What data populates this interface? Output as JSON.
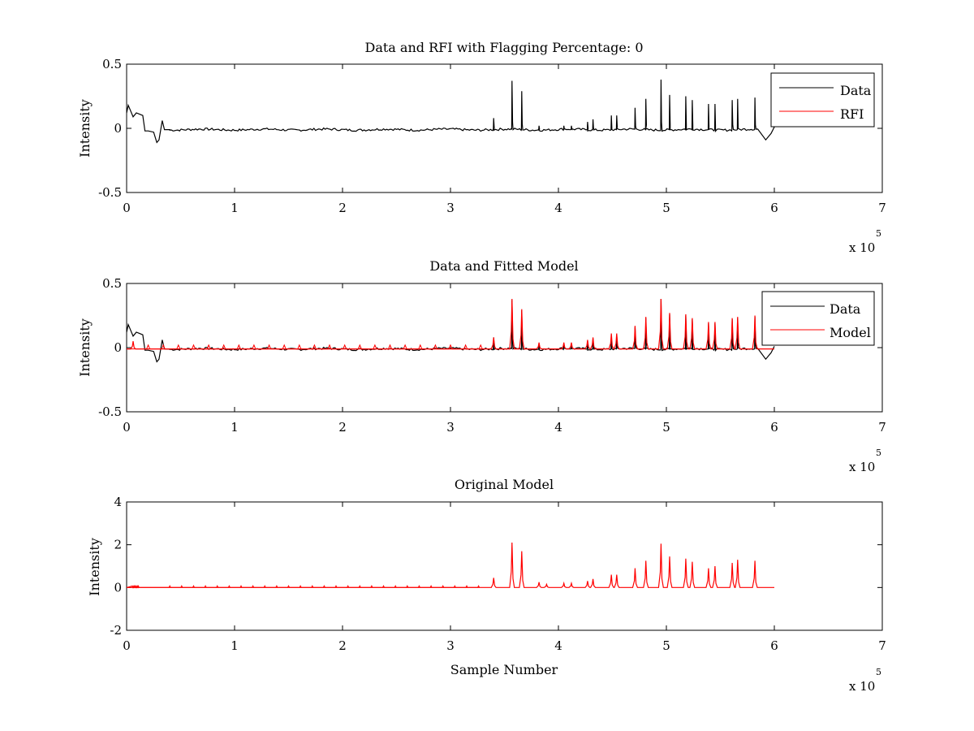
{
  "chart_data": [
    {
      "type": "line",
      "title": "Data and RFI with Flagging Percentage: 0",
      "ylabel": "Intensity",
      "xlabel": "",
      "xlim": [
        0,
        700000
      ],
      "ylim": [
        -0.5,
        0.5
      ],
      "xticks": [
        0,
        100000,
        200000,
        300000,
        400000,
        500000,
        600000,
        700000
      ],
      "xtick_labels": [
        "0",
        "1",
        "2",
        "3",
        "4",
        "5",
        "6",
        "7"
      ],
      "yticks": [
        -0.5,
        0,
        0.5
      ],
      "ytick_labels": [
        "-0.5",
        "0",
        "0.5"
      ],
      "x_multiplier": {
        "base": "x 10",
        "exponent": "5"
      },
      "legend_position": "top-right",
      "legend": [
        "Data",
        "RFI"
      ],
      "series": [
        {
          "name": "Data",
          "color": "#000000",
          "x": [
            0,
            1500,
            3000,
            6000,
            9000,
            12000,
            15000,
            17000,
            20000,
            25000,
            28000,
            30000,
            33000,
            35000,
            40000,
            600000
          ],
          "y": [
            0.12,
            0.18,
            0.15,
            0.09,
            0.12,
            0.11,
            0.1,
            -0.02,
            -0.02,
            -0.03,
            -0.11,
            -0.09,
            0.06,
            -0.01,
            -0.01,
            -0.01
          ],
          "peaks": [
            {
              "x": 340000,
              "y": 0.08
            },
            {
              "x": 357000,
              "y": 0.37
            },
            {
              "x": 366000,
              "y": 0.29
            },
            {
              "x": 382000,
              "y": 0.02
            },
            {
              "x": 405000,
              "y": 0.02
            },
            {
              "x": 412000,
              "y": 0.02
            },
            {
              "x": 427000,
              "y": 0.05
            },
            {
              "x": 432000,
              "y": 0.07
            },
            {
              "x": 449000,
              "y": 0.1
            },
            {
              "x": 454000,
              "y": 0.1
            },
            {
              "x": 471000,
              "y": 0.16
            },
            {
              "x": 481000,
              "y": 0.23
            },
            {
              "x": 495000,
              "y": 0.38
            },
            {
              "x": 503000,
              "y": 0.26
            },
            {
              "x": 518000,
              "y": 0.25
            },
            {
              "x": 524000,
              "y": 0.22
            },
            {
              "x": 539000,
              "y": 0.19
            },
            {
              "x": 545000,
              "y": 0.19
            },
            {
              "x": 561000,
              "y": 0.22
            },
            {
              "x": 566000,
              "y": 0.23
            },
            {
              "x": 582000,
              "y": 0.24
            }
          ],
          "end_feature": [
            {
              "x": 585000,
              "y": -0.01
            },
            {
              "x": 592000,
              "y": -0.09
            },
            {
              "x": 597000,
              "y": -0.04
            },
            {
              "x": 600000,
              "y": 0.01
            }
          ]
        },
        {
          "name": "RFI",
          "color": "#ff0000",
          "x": [],
          "y": []
        }
      ]
    },
    {
      "type": "line",
      "title": "Data and Fitted Model",
      "ylabel": "Intensity",
      "xlabel": "",
      "xlim": [
        0,
        700000
      ],
      "ylim": [
        -0.5,
        0.5
      ],
      "xticks": [
        0,
        100000,
        200000,
        300000,
        400000,
        500000,
        600000,
        700000
      ],
      "xtick_labels": [
        "0",
        "1",
        "2",
        "3",
        "4",
        "5",
        "6",
        "7"
      ],
      "yticks": [
        -0.5,
        0,
        0.5
      ],
      "ytick_labels": [
        "-0.5",
        "0",
        "0.5"
      ],
      "x_multiplier": {
        "base": "x 10",
        "exponent": "5"
      },
      "legend_position": "top-right",
      "legend": [
        "Data",
        "Model"
      ],
      "series": [
        {
          "name": "Data",
          "color": "#000000"
        },
        {
          "name": "Model",
          "color": "#ff0000",
          "peaks": [
            {
              "x": 6000,
              "y": 0.05
            },
            {
              "x": 340000,
              "y": 0.08
            },
            {
              "x": 357000,
              "y": 0.38
            },
            {
              "x": 366000,
              "y": 0.3
            },
            {
              "x": 382000,
              "y": 0.04
            },
            {
              "x": 405000,
              "y": 0.04
            },
            {
              "x": 412000,
              "y": 0.04
            },
            {
              "x": 427000,
              "y": 0.06
            },
            {
              "x": 432000,
              "y": 0.08
            },
            {
              "x": 449000,
              "y": 0.11
            },
            {
              "x": 454000,
              "y": 0.11
            },
            {
              "x": 471000,
              "y": 0.17
            },
            {
              "x": 481000,
              "y": 0.24
            },
            {
              "x": 495000,
              "y": 0.38
            },
            {
              "x": 503000,
              "y": 0.27
            },
            {
              "x": 518000,
              "y": 0.26
            },
            {
              "x": 524000,
              "y": 0.23
            },
            {
              "x": 539000,
              "y": 0.2
            },
            {
              "x": 545000,
              "y": 0.2
            },
            {
              "x": 561000,
              "y": 0.23
            },
            {
              "x": 566000,
              "y": 0.24
            },
            {
              "x": 582000,
              "y": 0.25
            }
          ]
        }
      ]
    },
    {
      "type": "line",
      "title": "Original Model",
      "ylabel": "Intensity",
      "xlabel": "Sample Number",
      "xlim": [
        0,
        700000
      ],
      "ylim": [
        -2,
        4
      ],
      "xticks": [
        0,
        100000,
        200000,
        300000,
        400000,
        500000,
        600000,
        700000
      ],
      "xtick_labels": [
        "0",
        "1",
        "2",
        "3",
        "4",
        "5",
        "6",
        "7"
      ],
      "yticks": [
        -2,
        0,
        2,
        4
      ],
      "ytick_labels": [
        "-2",
        "0",
        "2",
        "4"
      ],
      "x_multiplier": {
        "base": "x 10",
        "exponent": "5"
      },
      "series": [
        {
          "name": "Model",
          "color": "#ff0000",
          "x": [
            0,
            600000
          ],
          "y": [
            0,
            0
          ],
          "peaks": [
            {
              "x": 340000,
              "y": 0.45
            },
            {
              "x": 357000,
              "y": 2.1
            },
            {
              "x": 366000,
              "y": 1.7
            },
            {
              "x": 382000,
              "y": 0.25
            },
            {
              "x": 389000,
              "y": 0.15
            },
            {
              "x": 405000,
              "y": 0.2
            },
            {
              "x": 412000,
              "y": 0.2
            },
            {
              "x": 427000,
              "y": 0.3
            },
            {
              "x": 432000,
              "y": 0.4
            },
            {
              "x": 449000,
              "y": 0.6
            },
            {
              "x": 454000,
              "y": 0.6
            },
            {
              "x": 471000,
              "y": 0.9
            },
            {
              "x": 481000,
              "y": 1.25
            },
            {
              "x": 495000,
              "y": 2.05
            },
            {
              "x": 503000,
              "y": 1.45
            },
            {
              "x": 518000,
              "y": 1.35
            },
            {
              "x": 524000,
              "y": 1.2
            },
            {
              "x": 539000,
              "y": 0.9
            },
            {
              "x": 545000,
              "y": 1.0
            },
            {
              "x": 561000,
              "y": 1.15
            },
            {
              "x": 566000,
              "y": 1.3
            },
            {
              "x": 582000,
              "y": 1.25
            }
          ]
        }
      ]
    }
  ]
}
